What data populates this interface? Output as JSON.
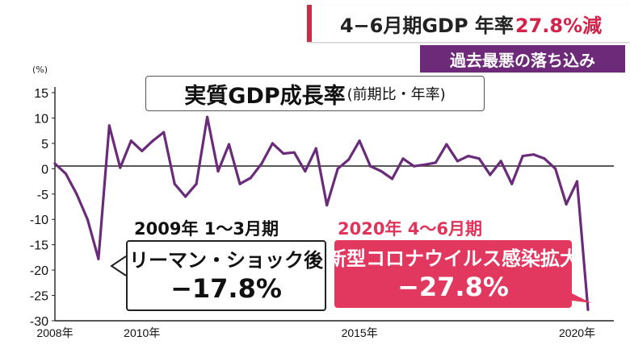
{
  "headline": {
    "text": "4−6月期GDP 年率",
    "accent": "27.8%減"
  },
  "subhead": "過去最悪の落ち込み",
  "chart_title": {
    "main": "実質GDP成長率",
    "sub": "(前期比・年率)"
  },
  "annotations": {
    "lehman": {
      "period": "2009年 1〜3月期",
      "label": "リーマン・ショック後",
      "value": "−17.8%"
    },
    "covid": {
      "period": "2020年 4〜6月期",
      "label": "新型コロナウイルス感染拡大",
      "value": "−27.8%"
    }
  },
  "colors": {
    "line": "#6a2c7a",
    "accent": "#d2234a",
    "subhead_bg": "#6c2a78",
    "callout_covid": "#e2385f"
  },
  "chart_data": {
    "type": "line",
    "title": "実質GDP成長率(前期比・年率)",
    "ylabel": "(%)",
    "xlabel": "",
    "ylim": [
      -30,
      15
    ],
    "yticks": [
      15,
      10,
      5,
      0,
      -5,
      -10,
      -15,
      -20,
      -25,
      -30
    ],
    "xticks": [
      {
        "label": "2008年",
        "x": 2008.0
      },
      {
        "label": "2010年",
        "x": 2010.0
      },
      {
        "label": "2015年",
        "x": 2015.0
      },
      {
        "label": "2020年",
        "x": 2020.0
      }
    ],
    "zero_line": true,
    "grid": false,
    "series": [
      {
        "x": [
          2008.0,
          2008.25,
          2008.5,
          2008.75,
          2009.0,
          2009.25,
          2009.5,
          2009.75,
          2010.0,
          2010.25,
          2010.5,
          2010.75,
          2011.0,
          2011.25,
          2011.5,
          2011.75,
          2012.0,
          2012.25,
          2012.5,
          2012.75,
          2013.0,
          2013.25,
          2013.5,
          2013.75,
          2014.0,
          2014.25,
          2014.5,
          2014.75,
          2015.0,
          2015.25,
          2015.5,
          2015.75,
          2016.0,
          2016.25,
          2016.5,
          2016.75,
          2017.0,
          2017.25,
          2017.5,
          2017.75,
          2018.0,
          2018.25,
          2018.5,
          2018.75,
          2019.0,
          2019.25,
          2019.5,
          2019.75,
          2020.0,
          2020.25
        ],
        "values": [
          1,
          -1,
          -5,
          -10,
          -17.8,
          8.5,
          0.2,
          5.5,
          3.5,
          5.5,
          7.2,
          -3,
          -5.5,
          -3,
          10.2,
          -0.5,
          4.8,
          -3,
          -1.8,
          1,
          5,
          3,
          3.2,
          -0.5,
          4,
          -7.2,
          0,
          1.8,
          5.5,
          0.5,
          -0.5,
          -2,
          2,
          0.5,
          0.8,
          1.2,
          4.8,
          1.5,
          2.5,
          2,
          -1.2,
          1.5,
          -3,
          2.5,
          2.8,
          2,
          0,
          -7,
          -2.5,
          -27.8
        ]
      }
    ]
  }
}
